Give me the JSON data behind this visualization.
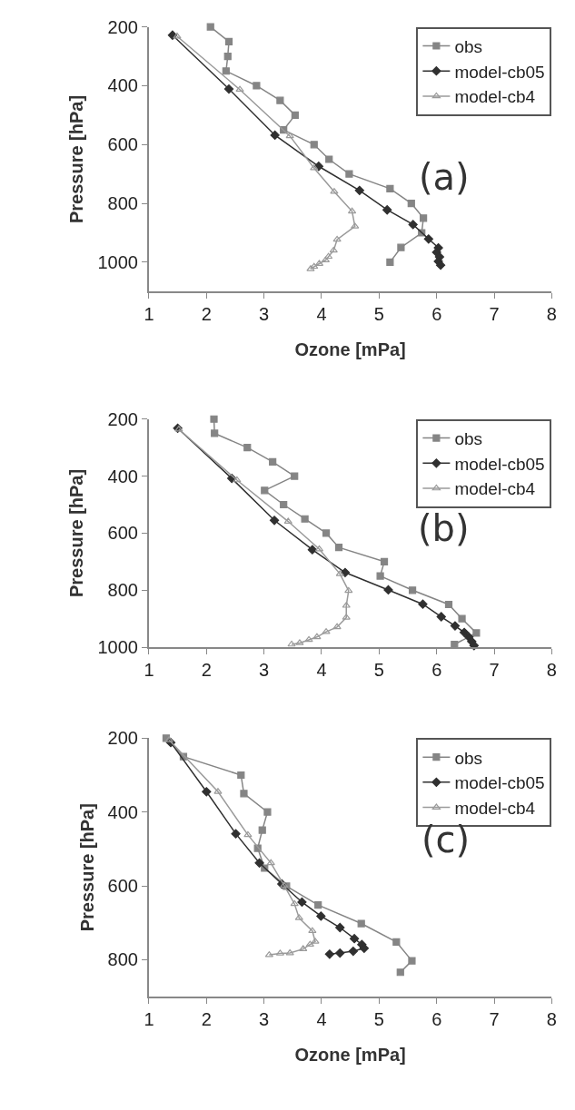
{
  "chart_data": [
    {
      "type": "line",
      "ylabel": "Pressure [hPa]",
      "xlabel": "Ozone [mPa]",
      "annotations": [
        "(a)"
      ],
      "xlim": [
        1,
        8
      ],
      "xticks": [
        1,
        2,
        3,
        4,
        5,
        6,
        7,
        8
      ],
      "ylim": [
        1100,
        200
      ],
      "yticks": [
        200,
        400,
        600,
        800,
        1000
      ],
      "legend": "top right",
      "series": [
        {
          "name": "obs",
          "color": "#858585",
          "marker": "square",
          "x": [
            2.07,
            2.39,
            2.37,
            2.34,
            2.87,
            3.28,
            3.54,
            3.34,
            3.87,
            4.13,
            4.48,
            5.19,
            5.56,
            5.77,
            5.74,
            5.38,
            5.19
          ],
          "values": [
            200,
            250,
            300,
            350,
            400,
            450,
            500,
            550,
            600,
            650,
            700,
            750,
            800,
            850,
            900,
            950,
            1000
          ]
        },
        {
          "name": "model-cb05",
          "color": "#303030",
          "marker": "diamond",
          "x": [
            1.41,
            2.39,
            3.19,
            3.95,
            4.66,
            5.14,
            5.59,
            5.86,
            6.03,
            6.0,
            6.05,
            6.03,
            6.07
          ],
          "values": [
            228,
            411,
            568,
            674,
            756,
            822,
            872,
            921,
            951,
            966,
            982,
            997,
            1010
          ]
        },
        {
          "name": "model-cb4",
          "color": "#9a9a9a",
          "marker": "triangle",
          "x": [
            1.49,
            2.58,
            3.45,
            3.87,
            4.22,
            4.53,
            4.58,
            4.27,
            4.21,
            4.12,
            4.07,
            3.96,
            3.87,
            3.81
          ],
          "values": [
            232,
            413,
            571,
            680,
            760,
            827,
            878,
            923,
            960,
            981,
            993,
            1005,
            1015,
            1023
          ]
        }
      ]
    },
    {
      "type": "line",
      "ylabel": "Pressure [hPa]",
      "annotations": [
        "(b)"
      ],
      "xlim": [
        1,
        8
      ],
      "xticks": [
        1,
        2,
        3,
        4,
        5,
        6,
        7,
        8
      ],
      "ylim": [
        1000,
        200
      ],
      "yticks": [
        200,
        400,
        600,
        800,
        1000
      ],
      "legend": "top right",
      "series": [
        {
          "name": "obs",
          "color": "#858585",
          "marker": "square",
          "x": [
            2.13,
            2.14,
            2.71,
            3.15,
            3.53,
            3.01,
            3.34,
            3.71,
            4.08,
            4.3,
            5.09,
            5.02,
            5.58,
            6.21,
            6.44,
            6.69,
            6.31
          ],
          "values": [
            200,
            250,
            300,
            350,
            400,
            450,
            500,
            550,
            600,
            650,
            700,
            750,
            800,
            850,
            900,
            950,
            990
          ]
        },
        {
          "name": "model-cb05",
          "color": "#303030",
          "marker": "diamond",
          "x": [
            1.5,
            2.44,
            3.18,
            3.84,
            4.41,
            5.16,
            5.76,
            6.08,
            6.32,
            6.48,
            6.56,
            6.61,
            6.65
          ],
          "values": [
            232,
            408,
            555,
            658,
            738,
            799,
            849,
            893,
            925,
            948,
            964,
            980,
            994
          ]
        },
        {
          "name": "model-cb4",
          "color": "#9a9a9a",
          "marker": "triangle",
          "x": [
            1.52,
            2.53,
            3.42,
            3.96,
            4.32,
            4.47,
            4.43,
            4.43,
            4.27,
            4.08,
            3.92,
            3.78,
            3.62,
            3.48
          ],
          "values": [
            236,
            414,
            559,
            656,
            743,
            802,
            854,
            896,
            929,
            946,
            964,
            974,
            985,
            990
          ]
        }
      ]
    },
    {
      "type": "line",
      "ylabel": "Pressure [hPa]",
      "xlabel": "Ozone [mPa]",
      "annotations": [
        "(c)"
      ],
      "xlim": [
        1,
        8
      ],
      "xticks": [
        1,
        2,
        3,
        4,
        5,
        6,
        7,
        8
      ],
      "ylim": [
        900,
        200
      ],
      "yticks": [
        200,
        400,
        600,
        800
      ],
      "legend": "top right",
      "series": [
        {
          "name": "obs",
          "color": "#858585",
          "marker": "square",
          "x": [
            1.3,
            1.6,
            2.6,
            2.65,
            3.06,
            2.97,
            2.89,
            3.01,
            3.39,
            3.94,
            4.69,
            5.3,
            5.57,
            5.37
          ],
          "values": [
            200,
            250,
            300,
            350,
            400,
            449,
            498,
            552,
            601,
            652,
            702,
            752,
            803,
            834
          ]
        },
        {
          "name": "model-cb05",
          "color": "#303030",
          "marker": "diamond",
          "x": [
            1.38,
            2.0,
            2.51,
            2.92,
            3.31,
            3.66,
            3.99,
            4.32,
            4.57,
            4.7,
            4.74,
            4.55,
            4.32,
            4.14
          ],
          "values": [
            212,
            345,
            459,
            538,
            595,
            644,
            682,
            713,
            743,
            759,
            769,
            777,
            782,
            785
          ]
        },
        {
          "name": "model-cb4",
          "color": "#9a9a9a",
          "marker": "triangle",
          "x": [
            1.35,
            2.2,
            2.72,
            3.12,
            3.35,
            3.53,
            3.61,
            3.84,
            3.89,
            3.8,
            3.68,
            3.45,
            3.28,
            3.09
          ],
          "values": [
            205,
            345,
            462,
            538,
            599,
            649,
            687,
            722,
            751,
            759,
            771,
            782,
            783,
            787
          ]
        }
      ]
    }
  ]
}
